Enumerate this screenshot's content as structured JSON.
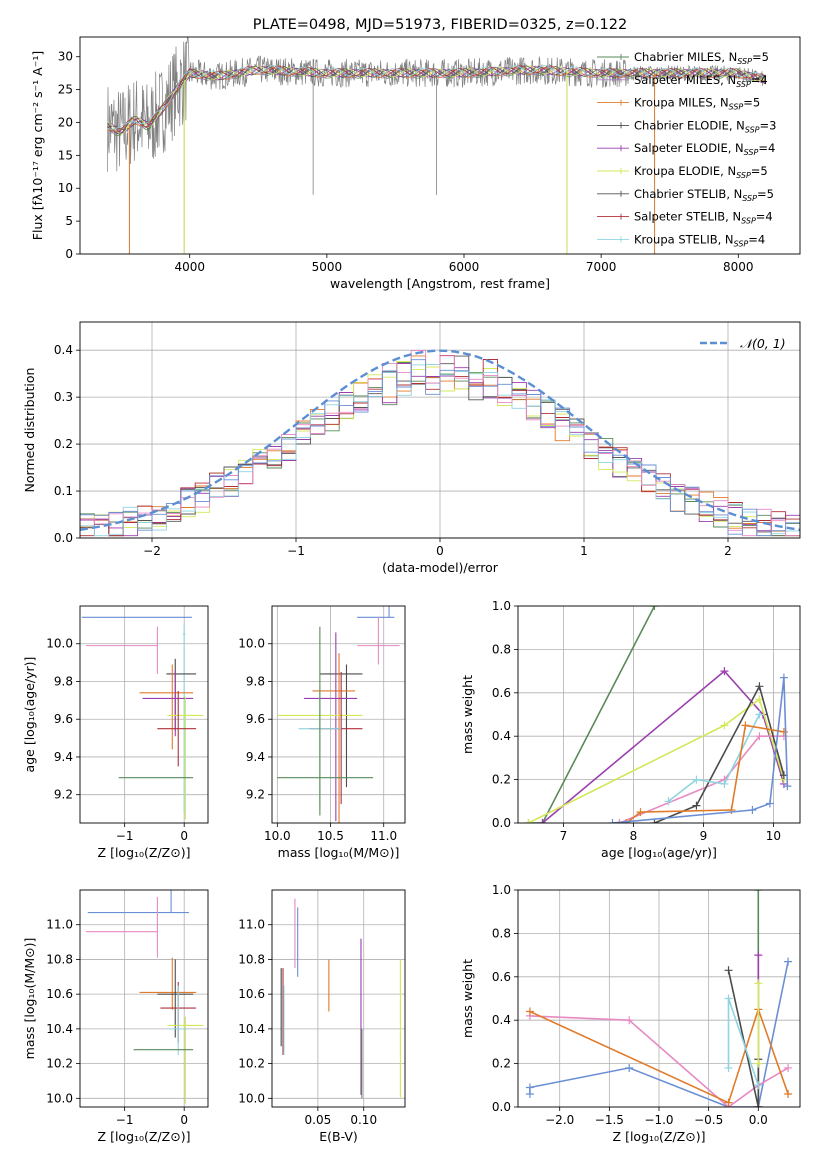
{
  "chart_data": [
    {
      "id": "spectrum",
      "type": "line",
      "title": "PLATE=0498, MJD=51973, FIBERID=0325, z=0.122",
      "xlabel": "wavelength [Angstrom, rest frame]",
      "ylabel": "Flux [fλ10⁻¹⁷ erg cm⁻² s⁻¹ A⁻¹]",
      "xlim": [
        3200,
        8450
      ],
      "ylim": [
        0,
        33
      ],
      "xticks": [
        "4000",
        "5000",
        "6000",
        "7000",
        "8000"
      ],
      "yticks": [
        "0",
        "5",
        "10",
        "15",
        "20",
        "25",
        "30"
      ],
      "grid": false,
      "legend_placement": "upper-right",
      "data_color": "#808080",
      "model_sketch_x": [
        3400,
        3500,
        3600,
        3700,
        3800,
        3900,
        4000,
        4200,
        4500,
        5000,
        5500,
        6000,
        6500,
        7000,
        7500,
        8000,
        8200
      ],
      "model_sketch_y": [
        19.5,
        18.5,
        20.5,
        19.5,
        22,
        25,
        27.5,
        27,
        28,
        27.5,
        27.5,
        27.5,
        28,
        27.5,
        27.5,
        27.5,
        26.5
      ],
      "spikes": [
        {
          "x": 3560,
          "y": 0
        },
        {
          "x": 3960,
          "y": 0
        },
        {
          "x": 4900,
          "y": 9
        },
        {
          "x": 5800,
          "y": 9
        },
        {
          "x": 6750,
          "y": 0
        },
        {
          "x": 7390,
          "y": 0
        }
      ],
      "series": [
        {
          "name": "Chabrier MILES, N",
          "sub": "SSP",
          "suffix": "=5",
          "color": "#5a8a5a"
        },
        {
          "name": "Salpeter MILES, N",
          "sub": "SSP",
          "suffix": "=4",
          "color": "#a87eb8"
        },
        {
          "name": "Kroupa MILES, N",
          "sub": "SSP",
          "suffix": "=5",
          "color": "#e07b2a"
        },
        {
          "name": "Chabrier ELODIE, N",
          "sub": "SSP",
          "suffix": "=3",
          "color": "#4b4b4b"
        },
        {
          "name": "Salpeter ELODIE, N",
          "sub": "SSP",
          "suffix": "=4",
          "color": "#9b3fb0"
        },
        {
          "name": "Kroupa ELODIE, N",
          "sub": "SSP",
          "suffix": "=5",
          "color": "#d4e85a"
        },
        {
          "name": "Chabrier STELIB, N",
          "sub": "SSP",
          "suffix": "=5",
          "color": "#555555"
        },
        {
          "name": "Salpeter STELIB, N",
          "sub": "SSP",
          "suffix": "=4",
          "color": "#b0303a"
        },
        {
          "name": "Kroupa STELIB, N",
          "sub": "SSP",
          "suffix": "=4",
          "color": "#8fd4e0"
        }
      ]
    },
    {
      "id": "residuals",
      "type": "line",
      "xlabel": "(data-model)/error",
      "ylabel": "Normed distribution",
      "xlim": [
        -2.5,
        2.5
      ],
      "ylim": [
        0,
        0.46
      ],
      "xticks": [
        "−2",
        "−1",
        "0",
        "1",
        "2"
      ],
      "yticks": [
        "0.0",
        "0.1",
        "0.2",
        "0.3",
        "0.4"
      ],
      "grid": true,
      "legend_placement": "upper-right",
      "gaussian_label": "𝒩(0, 1)",
      "gaussian_color": "#5b8fd4",
      "bin_width": 0.1,
      "hist_colors": [
        "#5a8a5a",
        "#e07b2a",
        "#9b3fb0",
        "#d4e85a",
        "#555555",
        "#b0303a",
        "#8fd4e0",
        "#e78ac3",
        "#6a8fd4"
      ]
    },
    {
      "id": "age-vs-Z",
      "type": "scatter",
      "xlabel": "Z [log₁₀(Z/Z⊙)]",
      "ylabel": "age  [log₁₀(age/yr)]",
      "xlim": [
        -1.75,
        0.4
      ],
      "ylim": [
        9.05,
        10.2
      ],
      "xticks": [
        "−1",
        "0"
      ],
      "yticks": [
        "9.2",
        "9.4",
        "9.6",
        "9.8",
        "10.0"
      ],
      "grid": true,
      "points": [
        {
          "x": -0.22,
          "y": 10.14,
          "xerr": [
            1.5,
            0.35
          ],
          "yerr": [
            0.0,
            0.0
          ],
          "color": "#6a8fd4"
        },
        {
          "x": -0.45,
          "y": 9.99,
          "xerr": [
            1.2,
            0.0
          ],
          "yerr": [
            0.15,
            0.1
          ],
          "color": "#e78ac3"
        },
        {
          "x": 0.0,
          "y": 10.05,
          "xerr": [
            0.02,
            0.02
          ],
          "yerr": [
            0.95,
            0.05
          ],
          "color": "#8fd4e0"
        },
        {
          "x": -0.15,
          "y": 9.84,
          "xerr": [
            0.15,
            0.35
          ],
          "yerr": [
            0.3,
            0.08
          ],
          "color": "#4b4b4b"
        },
        {
          "x": -0.2,
          "y": 9.74,
          "xerr": [
            0.55,
            0.35
          ],
          "yerr": [
            0.3,
            0.15
          ],
          "color": "#e07b2a"
        },
        {
          "x": -0.15,
          "y": 9.71,
          "xerr": [
            0.55,
            0.3
          ],
          "yerr": [
            0.2,
            0.15
          ],
          "color": "#9b3fb0"
        },
        {
          "x": 0.02,
          "y": 9.62,
          "xerr": [
            0.3,
            0.3
          ],
          "yerr": [
            0.55,
            0.1
          ],
          "color": "#d4e85a"
        },
        {
          "x": -0.1,
          "y": 9.55,
          "xerr": [
            0.35,
            0.3
          ],
          "yerr": [
            0.2,
            0.2
          ],
          "color": "#b0303a"
        },
        {
          "x": -0.3,
          "y": 9.29,
          "xerr": [
            0.8,
            0.45
          ],
          "yerr": [
            0.0,
            0.0
          ],
          "color": "#5a8a5a"
        }
      ]
    },
    {
      "id": "age-vs-mass",
      "type": "scatter",
      "xlabel": "mass [log₁₀(M/M⊙)]",
      "ylabel": "",
      "xlim": [
        9.95,
        11.2
      ],
      "ylim": [
        9.05,
        10.2
      ],
      "xticks": [
        "10.0",
        "10.5",
        "11.0"
      ],
      "yticks": [
        "9.2",
        "9.4",
        "9.6",
        "9.8",
        "10.0"
      ],
      "grid": true,
      "points": [
        {
          "x": 11.05,
          "y": 10.14,
          "xerr": [
            0.3,
            0.05
          ],
          "yerr": [
            0.0,
            0.2
          ],
          "color": "#6a8fd4"
        },
        {
          "x": 10.95,
          "y": 9.99,
          "xerr": [
            0.2,
            0.2
          ],
          "yerr": [
            0.1,
            0.15
          ],
          "color": "#e78ac3"
        },
        {
          "x": 10.65,
          "y": 9.84,
          "xerr": [
            0.25,
            0.15
          ],
          "yerr": [
            0.6,
            0.05
          ],
          "color": "#4b4b4b"
        },
        {
          "x": 10.58,
          "y": 9.75,
          "xerr": [
            0.25,
            0.15
          ],
          "yerr": [
            0.7,
            0.2
          ],
          "color": "#e07b2a"
        },
        {
          "x": 10.55,
          "y": 9.71,
          "xerr": [
            0.3,
            0.2
          ],
          "yerr": [
            0.65,
            0.35
          ],
          "color": "#9b3fb0"
        },
        {
          "x": 10.4,
          "y": 9.62,
          "xerr": [
            0.4,
            0.4
          ],
          "yerr": [
            0.5,
            0.15
          ],
          "color": "#d4e85a"
        },
        {
          "x": 10.6,
          "y": 9.55,
          "xerr": [
            0.3,
            0.2
          ],
          "yerr": [
            0.4,
            0.3
          ],
          "color": "#b0303a"
        },
        {
          "x": 10.4,
          "y": 9.55,
          "xerr": [
            0.2,
            0.2
          ],
          "yerr": [
            0.4,
            0.2
          ],
          "color": "#8fd4e0"
        },
        {
          "x": 10.4,
          "y": 9.29,
          "xerr": [
            0.4,
            0.5
          ],
          "yerr": [
            0.2,
            0.8
          ],
          "color": "#5a8a5a"
        }
      ]
    },
    {
      "id": "weight-vs-age",
      "type": "line",
      "xlabel": "age  [log₁₀(age/yr)]",
      "ylabel": "mass weight",
      "xlim": [
        6.35,
        10.38
      ],
      "ylim": [
        0,
        1.0
      ],
      "xticks": [
        "7",
        "8",
        "9",
        "10"
      ],
      "yticks": [
        "0.0",
        "0.2",
        "0.4",
        "0.6",
        "0.8",
        "1.0"
      ],
      "grid": true,
      "series": [
        {
          "color": "#5a8a5a",
          "x": [
            6.5,
            6.7,
            8.3
          ],
          "y": [
            0.0,
            0.0,
            1.0
          ]
        },
        {
          "color": "#9b3fb0",
          "x": [
            6.7,
            9.3,
            9.85,
            10.15
          ],
          "y": [
            0.0,
            0.7,
            0.5,
            0.18
          ]
        },
        {
          "color": "#d4e85a",
          "x": [
            6.5,
            9.3,
            9.8,
            10.15
          ],
          "y": [
            0.0,
            0.45,
            0.57,
            0.2
          ]
        },
        {
          "color": "#e78ac3",
          "x": [
            7.8,
            9.3,
            9.8,
            10.15
          ],
          "y": [
            0.0,
            0.2,
            0.4,
            0.4
          ]
        },
        {
          "color": "#4b4b4b",
          "x": [
            8.3,
            8.9,
            9.8,
            10.15
          ],
          "y": [
            0.0,
            0.08,
            0.63,
            0.22
          ]
        },
        {
          "color": "#8fd4e0",
          "x": [
            8.5,
            8.9,
            9.3,
            9.8
          ],
          "y": [
            0.1,
            0.2,
            0.18,
            0.5
          ]
        },
        {
          "color": "#e07b2a",
          "x": [
            7.9,
            8.1,
            9.4,
            9.6,
            10.15
          ],
          "y": [
            0.0,
            0.05,
            0.06,
            0.45,
            0.42
          ]
        },
        {
          "color": "#6a8fd4",
          "x": [
            7.7,
            9.7,
            9.95,
            10.15,
            10.2
          ],
          "y": [
            0.0,
            0.06,
            0.09,
            0.67,
            0.17
          ]
        }
      ]
    },
    {
      "id": "mass-vs-Z",
      "type": "scatter",
      "xlabel": "Z [log₁₀(Z/Z⊙)]",
      "ylabel": "mass [log₁₀(M/M⊙)]",
      "xlim": [
        -1.75,
        0.4
      ],
      "ylim": [
        9.95,
        11.2
      ],
      "xticks": [
        "−1",
        "0"
      ],
      "yticks": [
        "10.0",
        "10.2",
        "10.4",
        "10.6",
        "10.8",
        "11.0"
      ],
      "grid": true,
      "points": [
        {
          "x": -0.22,
          "y": 11.07,
          "xerr": [
            1.4,
            0.3
          ],
          "yerr": [
            0.0,
            0.35
          ],
          "color": "#6a8fd4"
        },
        {
          "x": -0.45,
          "y": 10.96,
          "xerr": [
            1.2,
            0.0
          ],
          "yerr": [
            0.15,
            0.2
          ],
          "color": "#e78ac3"
        },
        {
          "x": -0.2,
          "y": 10.61,
          "xerr": [
            0.55,
            0.4
          ],
          "yerr": [
            0.1,
            0.2
          ],
          "color": "#e07b2a"
        },
        {
          "x": -0.15,
          "y": 10.6,
          "xerr": [
            0.3,
            0.3
          ],
          "yerr": [
            0.25,
            0.2
          ],
          "color": "#4b4b4b"
        },
        {
          "x": -0.1,
          "y": 10.52,
          "xerr": [
            0.3,
            0.3
          ],
          "yerr": [
            0.2,
            0.15
          ],
          "color": "#b0303a"
        },
        {
          "x": 0.02,
          "y": 10.42,
          "xerr": [
            0.3,
            0.3
          ],
          "yerr": [
            0.45,
            0.05
          ],
          "color": "#d4e85a"
        },
        {
          "x": -0.1,
          "y": 10.4,
          "xerr": [
            0.15,
            0.15
          ],
          "yerr": [
            0.15,
            0.25
          ],
          "color": "#8fd4e0"
        },
        {
          "x": -0.35,
          "y": 10.28,
          "xerr": [
            0.5,
            0.5
          ],
          "yerr": [
            0.0,
            0.0
          ],
          "color": "#5a8a5a"
        }
      ]
    },
    {
      "id": "mass-vs-ebv",
      "type": "scatter",
      "xlabel": "E(B-V)",
      "ylabel": "",
      "xlim": [
        0.0,
        0.145
      ],
      "ylim": [
        9.95,
        11.2
      ],
      "xticks": [
        "0.05",
        "0.10"
      ],
      "yticks": [
        "10.0",
        "10.2",
        "10.4",
        "10.6",
        "10.8",
        "11.0"
      ],
      "grid": true,
      "points": [
        {
          "x": 0.01,
          "y": 10.55,
          "yerr": [
            0.25,
            0.2
          ],
          "color": "#4b4b4b"
        },
        {
          "x": 0.012,
          "y": 10.5,
          "yerr": [
            0.25,
            0.25
          ],
          "color": "#b0303a"
        },
        {
          "x": 0.013,
          "y": 10.45,
          "yerr": [
            0.2,
            0.2
          ],
          "color": "#8fd4e0"
        },
        {
          "x": 0.025,
          "y": 10.95,
          "yerr": [
            0.2,
            0.2
          ],
          "color": "#e78ac3"
        },
        {
          "x": 0.028,
          "y": 10.9,
          "yerr": [
            0.2,
            0.2
          ],
          "color": "#6a8fd4"
        },
        {
          "x": 0.062,
          "y": 10.65,
          "yerr": [
            0.15,
            0.15
          ],
          "color": "#e07b2a"
        },
        {
          "x": 0.097,
          "y": 10.62,
          "yerr": [
            0.6,
            0.3
          ],
          "color": "#9b3fb0"
        },
        {
          "x": 0.098,
          "y": 10.2,
          "yerr": [
            0.2,
            0.2
          ],
          "color": "#5a8a5a"
        },
        {
          "x": 0.14,
          "y": 10.4,
          "yerr": [
            0.4,
            0.4
          ],
          "color": "#d4e85a"
        }
      ]
    },
    {
      "id": "weight-vs-Z",
      "type": "line",
      "xlabel": "Z [log₁₀(Z/Z⊙)]",
      "ylabel": "mass weight",
      "xlim": [
        -2.42,
        0.42
      ],
      "ylim": [
        0,
        1.0
      ],
      "xticks": [
        "−2.0",
        "−1.5",
        "−1.0",
        "−0.5",
        "0.0"
      ],
      "yticks": [
        "0.0",
        "0.2",
        "0.4",
        "0.6",
        "0.8",
        "1.0"
      ],
      "grid": true,
      "series": [
        {
          "color": "#6a8fd4",
          "x": [
            -2.3,
            -2.3,
            -1.3,
            -0.3,
            0.0,
            0.3
          ],
          "y": [
            0.06,
            0.09,
            0.18,
            0.0,
            0.0,
            0.67
          ]
        },
        {
          "color": "#e78ac3",
          "x": [
            -2.3,
            -1.3,
            -0.3,
            0.0,
            0.3
          ],
          "y": [
            0.42,
            0.4,
            0.0,
            0.1,
            0.18
          ]
        },
        {
          "color": "#e07b2a",
          "x": [
            -2.3,
            -0.3,
            0.0,
            0.3
          ],
          "y": [
            0.44,
            0.02,
            0.45,
            0.06
          ]
        },
        {
          "color": "#5a8a5a",
          "x": [
            0.0,
            0.0
          ],
          "y": [
            0.0,
            1.0
          ]
        },
        {
          "color": "#9b3fb0",
          "x": [
            0.0,
            0.0
          ],
          "y": [
            0.0,
            0.7
          ]
        },
        {
          "color": "#4b4b4b",
          "x": [
            -0.3,
            0.0,
            0.0
          ],
          "y": [
            0.63,
            0.0,
            0.22
          ]
        },
        {
          "color": "#8fd4e0",
          "x": [
            -0.3,
            -0.3,
            0.0
          ],
          "y": [
            0.18,
            0.5,
            0.1
          ]
        },
        {
          "color": "#d4e85a",
          "x": [
            0.0,
            0.0
          ],
          "y": [
            0.2,
            0.57
          ]
        }
      ]
    }
  ]
}
